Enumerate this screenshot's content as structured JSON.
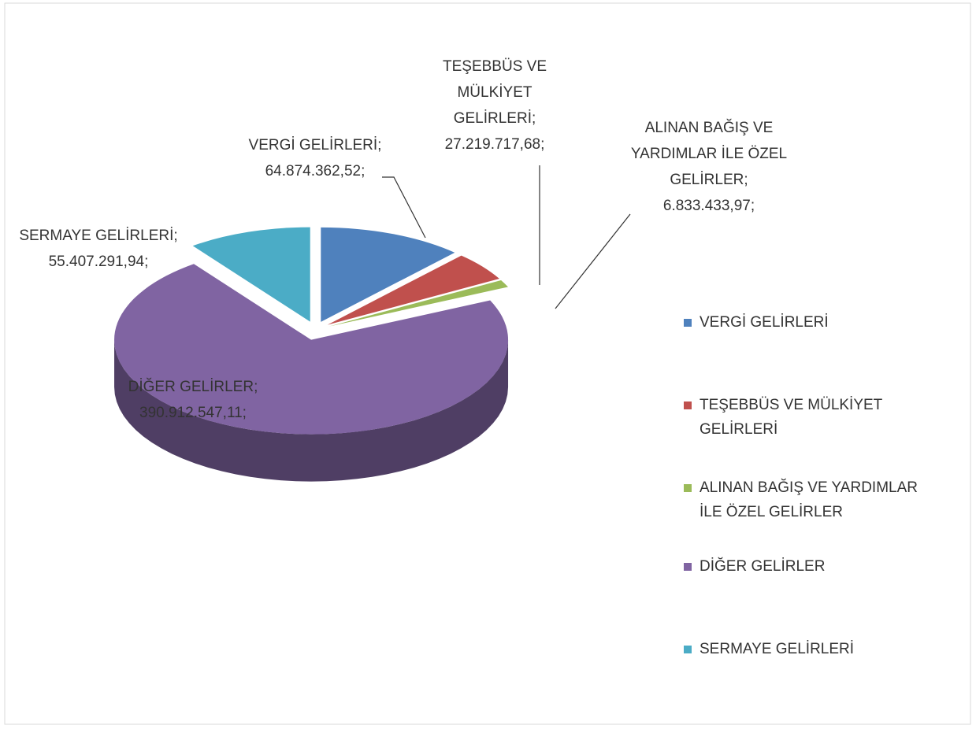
{
  "chart_data": {
    "type": "pie",
    "categories": [
      "VERGİ GELİRLERİ",
      "TEŞEBBÜS VE MÜLKİYET GELİRLERİ",
      "ALINAN BAĞIŞ VE YARDIMLAR İLE ÖZEL GELİRLER",
      "DİĞER GELİRLER",
      "SERMAYE GELİRLERİ"
    ],
    "values": [
      64874362.52,
      27219717.68,
      6833433.97,
      390912547.11,
      55407291.94
    ],
    "value_labels": [
      "VERGİ GELİRLERİ; 64.874.362,52;",
      "TEŞEBBÜS VE MÜLKİYET GELİRLERİ; 27.219.717,68;",
      "ALINAN BAĞIŞ VE YARDIMLAR İLE ÖZEL GELİRLER; 6.833.433,97;",
      "DİĞER GELİRLER; 390.912.547,11;",
      "SERMAYE GELİRLERİ; 55.407.291,94;"
    ],
    "colors": [
      "#4f81bd",
      "#c0504d",
      "#9bbb59",
      "#8064a2",
      "#4bacc6"
    ],
    "legend": "right"
  }
}
